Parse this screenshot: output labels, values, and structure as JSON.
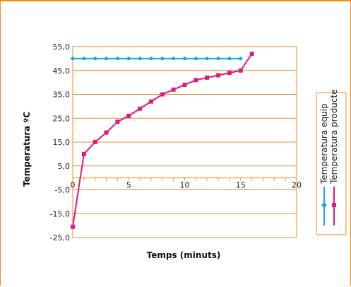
{
  "chart_data": {
    "type": "line",
    "title": "",
    "xlabel": "Temps (minuts)",
    "ylabel": "Temperatura ºC",
    "xlim": [
      0,
      20
    ],
    "ylim": [
      -25,
      55
    ],
    "x_ticks": [
      0,
      5,
      10,
      15,
      20
    ],
    "x_tick_labels": [
      "0",
      "5",
      "10",
      "15",
      "20"
    ],
    "y_ticks": [
      55,
      45,
      35,
      25,
      15,
      5,
      -5,
      -15,
      -25
    ],
    "y_tick_labels": [
      "55,0",
      "45,0",
      "35,0",
      "25,0",
      "15,0",
      "5,0",
      "-5,0",
      "-15,0",
      "-25,0"
    ],
    "grid": "horizontal",
    "legend_position": "right",
    "series": [
      {
        "name": "Temperatura equip",
        "color": "#1aa7e0",
        "marker": "diamond",
        "x": [
          0,
          1,
          2,
          3,
          4,
          5,
          6,
          7,
          8,
          9,
          10,
          11,
          12,
          13,
          14,
          15
        ],
        "y": [
          50,
          50,
          50,
          50,
          50,
          50,
          50,
          50,
          50,
          50,
          50,
          50,
          50,
          50,
          50,
          50
        ]
      },
      {
        "name": "Temperatura producte",
        "color": "#e0197d",
        "marker": "square",
        "x": [
          0,
          1,
          2,
          3,
          4,
          5,
          6,
          7,
          8,
          9,
          10,
          11,
          12,
          13,
          14,
          15,
          16
        ],
        "y": [
          -20.5,
          10,
          15,
          19,
          23.5,
          26,
          29,
          32,
          35,
          37,
          39,
          41,
          42,
          43,
          44,
          45,
          52
        ]
      }
    ]
  }
}
